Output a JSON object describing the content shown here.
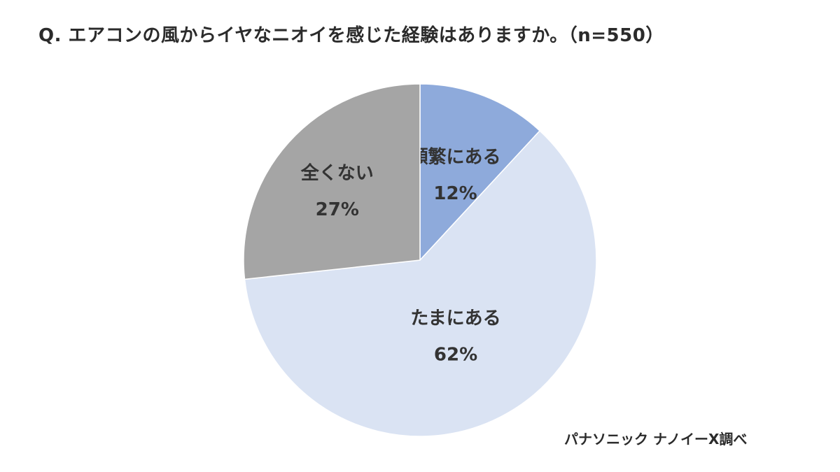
{
  "title": "Q. エアコンの風からイヤなニオイを感じた経験はありますか。（n=550）",
  "source": "パナソニック ナノイーX調べ",
  "chart_data": {
    "type": "pie",
    "title": "Q. エアコンの風からイヤなニオイを感じた経験はありますか。（n=550）",
    "n": 550,
    "start": "12 o'clock",
    "direction": "clockwise",
    "slices": [
      {
        "label": "頻繁にある",
        "value": 12,
        "value_label": "12%",
        "color": "#8eaadb"
      },
      {
        "label": "たまにある",
        "value": 62,
        "value_label": "62%",
        "color": "#dae3f3"
      },
      {
        "label": "全くない",
        "value": 27,
        "value_label": "27%",
        "color": "#a5a5a5"
      }
    ]
  }
}
